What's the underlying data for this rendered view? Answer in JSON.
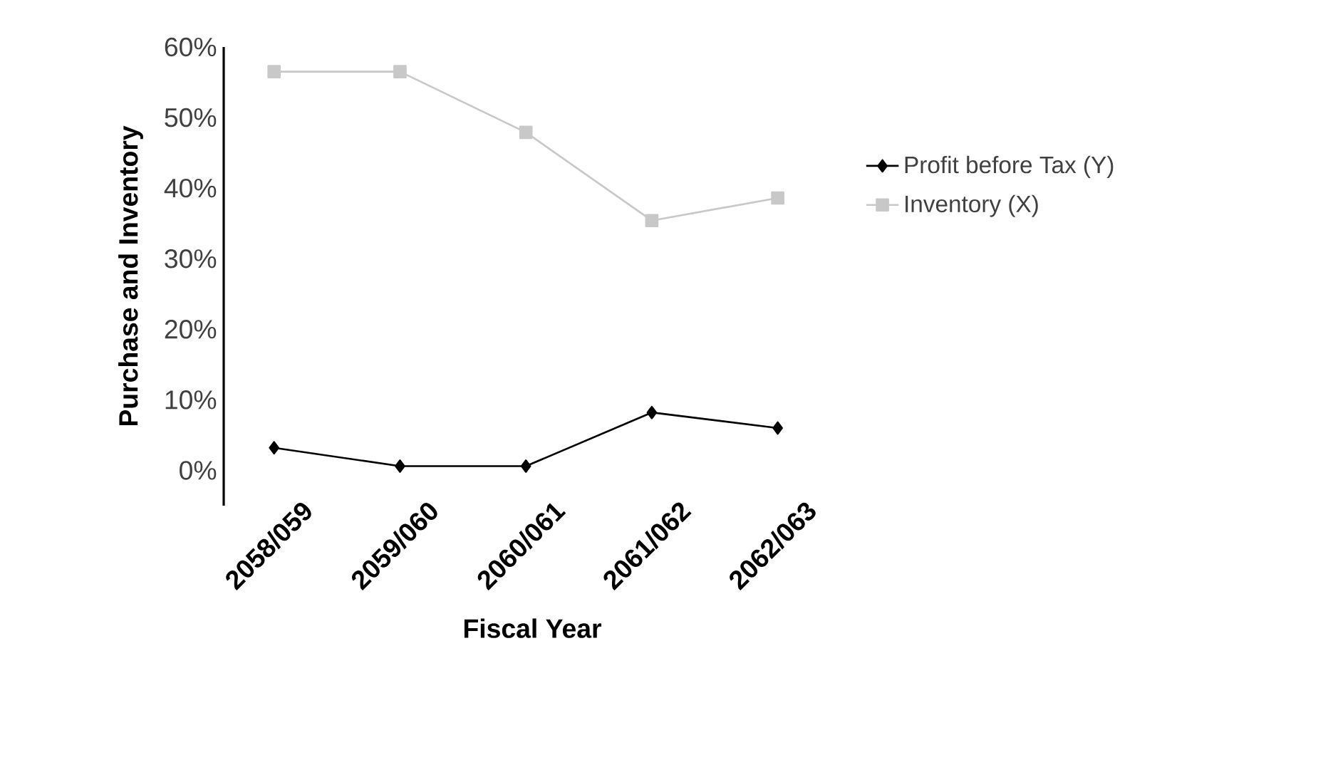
{
  "chart_data": {
    "type": "line",
    "xlabel": "Fiscal Year",
    "ylabel": "Purchase and Inventory",
    "categories": [
      "2058/059",
      "2059/060",
      "2060/061",
      "2061/062",
      "2062/063"
    ],
    "series": [
      {
        "name": "Profit before Tax (Y)",
        "color": "#000000",
        "marker": "diamond",
        "values": [
          3.2,
          0.6,
          0.6,
          8.2,
          6.0
        ]
      },
      {
        "name": "Inventory (X)",
        "color": "#c8c8c8",
        "marker": "square",
        "values": [
          56.5,
          56.5,
          47.9,
          35.4,
          38.6
        ]
      }
    ],
    "ylim": [
      -5,
      60
    ],
    "yticks": [
      {
        "value": 0,
        "label": "0%"
      },
      {
        "value": 10,
        "label": "10%"
      },
      {
        "value": 20,
        "label": "20%"
      },
      {
        "value": 30,
        "label": "30%"
      },
      {
        "value": 40,
        "label": "40%"
      },
      {
        "value": 50,
        "label": "50%"
      },
      {
        "value": 60,
        "label": "60%"
      }
    ],
    "legend": "right",
    "grid": false,
    "line_style": "solid"
  }
}
